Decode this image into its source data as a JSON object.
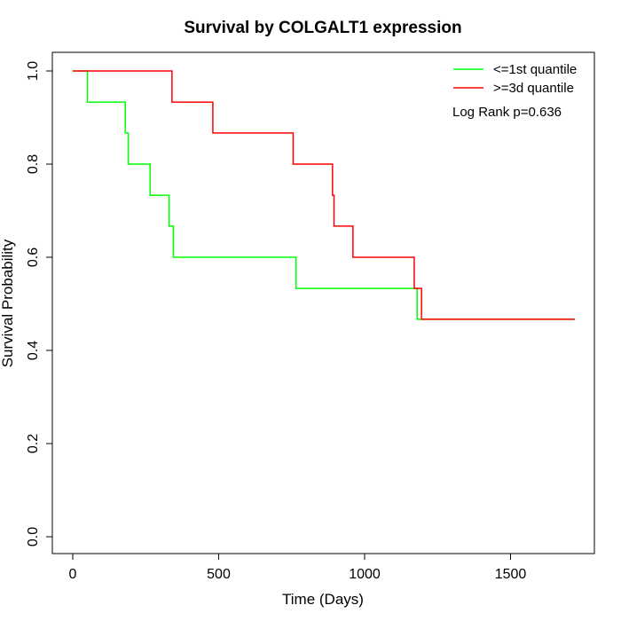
{
  "chart_data": {
    "type": "line",
    "subtype": "kaplan-meier step",
    "title": "Survival by COLGALT1 expression",
    "xlabel": "Time (Days)",
    "ylabel": "Survival Probability",
    "xlim": [
      0,
      1720
    ],
    "ylim": [
      0,
      1.0
    ],
    "x_ticks": [
      0,
      500,
      1000,
      1500
    ],
    "y_ticks": [
      0.0,
      0.2,
      0.4,
      0.6,
      0.8,
      1.0
    ],
    "x_tick_labels": [
      "0",
      "500",
      "1000",
      "1500"
    ],
    "y_tick_labels": [
      "0.0",
      "0.2",
      "0.4",
      "0.6",
      "0.8",
      "1.0"
    ],
    "grid": false,
    "legend_position": "top-right",
    "annotation": "Log Rank p=0.636",
    "series": [
      {
        "name": "<=1st quantile",
        "color": "#00ff00",
        "x": [
          0,
          50,
          180,
          190,
          265,
          330,
          345,
          765,
          1180,
          1720
        ],
        "y": [
          1.0,
          0.933,
          0.867,
          0.8,
          0.733,
          0.667,
          0.6,
          0.533,
          0.467,
          0.467
        ]
      },
      {
        "name": ">=3d quantile",
        "color": "#ff0000",
        "x": [
          0,
          340,
          480,
          755,
          890,
          895,
          960,
          1170,
          1195,
          1720
        ],
        "y": [
          1.0,
          0.933,
          0.867,
          0.8,
          0.733,
          0.667,
          0.6,
          0.533,
          0.467,
          0.467
        ]
      }
    ]
  }
}
